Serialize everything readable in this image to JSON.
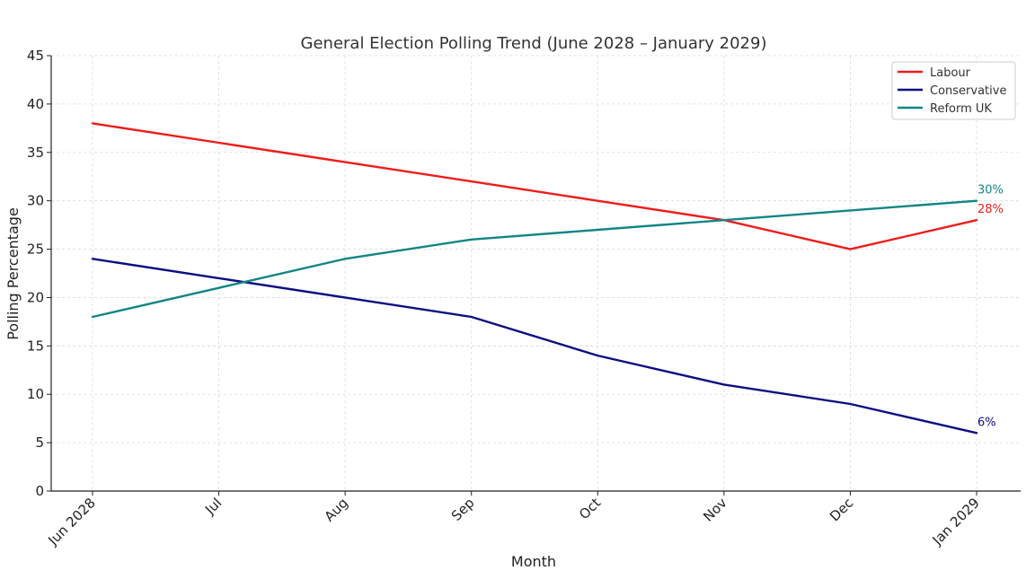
{
  "chart_data": {
    "type": "line",
    "title": "General Election Polling Trend (June 2028 – January 2029)",
    "xlabel": "Month",
    "ylabel": "Polling Percentage",
    "categories": [
      "Jun 2028",
      "Jul",
      "Aug",
      "Sep",
      "Oct",
      "Nov",
      "Dec",
      "Jan 2029"
    ],
    "ylim": [
      0,
      45
    ],
    "yticks": [
      0,
      5,
      10,
      15,
      20,
      25,
      30,
      35,
      40,
      45
    ],
    "grid": true,
    "legend_position": "top-right",
    "series": [
      {
        "name": "Labour",
        "color": "#ee1c1c",
        "values": [
          38,
          36,
          34,
          32,
          30,
          28,
          25,
          28
        ],
        "end_label": "28%"
      },
      {
        "name": "Conservative",
        "color": "#0d0d82",
        "values": [
          24,
          22,
          20,
          18,
          14,
          11,
          9,
          6
        ],
        "end_label": "6%"
      },
      {
        "name": "Reform UK",
        "color": "#138585",
        "values": [
          18,
          21,
          24,
          26,
          27,
          28,
          29,
          30
        ],
        "end_label": "30%"
      }
    ]
  }
}
